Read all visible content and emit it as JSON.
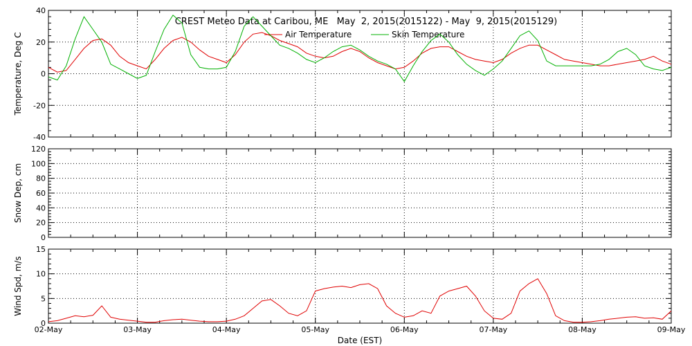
{
  "chart_data": {
    "type": "line",
    "title": "CREST Meteo Data at Caribou, ME   May  2, 2015(2015122) - May  9, 2015(2015129)",
    "xlabel": "Date (EST)",
    "x_tick_labels": [
      "02-May",
      "03-May",
      "04-May",
      "05-May",
      "06-May",
      "07-May",
      "08-May",
      "09-May"
    ],
    "xlim": [
      0,
      7
    ],
    "grid": true,
    "legend_position": "top-center",
    "panels": [
      {
        "ylabel": "Temperature, Deg C",
        "ylim": [
          -40,
          40
        ],
        "yticks": [
          -40,
          -20,
          0,
          20,
          40
        ],
        "series": [
          {
            "name": "Air Temperature",
            "color": "#e00000",
            "x": [
              0,
              0.1,
              0.2,
              0.3,
              0.4,
              0.5,
              0.6,
              0.7,
              0.8,
              0.9,
              1.0,
              1.1,
              1.2,
              1.3,
              1.4,
              1.5,
              1.6,
              1.7,
              1.8,
              1.9,
              2.0,
              2.1,
              2.2,
              2.3,
              2.4,
              2.5,
              2.6,
              2.7,
              2.8,
              2.9,
              3.0,
              3.1,
              3.2,
              3.3,
              3.4,
              3.5,
              3.6,
              3.7,
              3.8,
              3.9,
              4.0,
              4.1,
              4.2,
              4.3,
              4.4,
              4.5,
              4.6,
              4.7,
              4.8,
              4.9,
              5.0,
              5.1,
              5.2,
              5.3,
              5.4,
              5.5,
              5.6,
              5.7,
              5.8,
              5.9,
              6.0,
              6.1,
              6.2,
              6.3,
              6.4,
              6.5,
              6.6,
              6.7,
              6.8,
              6.9,
              7.0
            ],
            "y": [
              4,
              1,
              2,
              9,
              16,
              21,
              22,
              18,
              11,
              7,
              5,
              3,
              9,
              16,
              21,
              23,
              20,
              15,
              11,
              9,
              7,
              12,
              20,
              25,
              26,
              24,
              21,
              19,
              17,
              13,
              11,
              10,
              11,
              14,
              16,
              14,
              10,
              7,
              5,
              3,
              4,
              8,
              13,
              16,
              17,
              17,
              14,
              11,
              9,
              8,
              7,
              9,
              13,
              16,
              18,
              18,
              15,
              12,
              9,
              8,
              7,
              6,
              5,
              5,
              6,
              7,
              8,
              9,
              11,
              8,
              6
            ]
          },
          {
            "name": "Skin Temperature",
            "color": "#00b000",
            "x": [
              0,
              0.1,
              0.2,
              0.3,
              0.4,
              0.5,
              0.6,
              0.7,
              0.8,
              0.9,
              1.0,
              1.1,
              1.2,
              1.3,
              1.4,
              1.5,
              1.6,
              1.7,
              1.8,
              1.9,
              2.0,
              2.1,
              2.2,
              2.3,
              2.4,
              2.5,
              2.6,
              2.7,
              2.8,
              2.9,
              3.0,
              3.1,
              3.2,
              3.3,
              3.4,
              3.5,
              3.6,
              3.7,
              3.8,
              3.9,
              4.0,
              4.1,
              4.2,
              4.3,
              4.4,
              4.5,
              4.6,
              4.7,
              4.8,
              4.9,
              5.0,
              5.1,
              5.2,
              5.3,
              5.4,
              5.5,
              5.6,
              5.7,
              5.8,
              5.9,
              6.0,
              6.1,
              6.2,
              6.3,
              6.4,
              6.5,
              6.6,
              6.7,
              6.8,
              6.9,
              7.0
            ],
            "y": [
              -2,
              -4,
              5,
              22,
              36,
              28,
              20,
              6,
              3,
              0,
              -3,
              -1,
              14,
              28,
              37,
              32,
              12,
              4,
              3,
              3,
              4,
              14,
              30,
              36,
              30,
              24,
              18,
              16,
              13,
              9,
              7,
              10,
              14,
              17,
              18,
              15,
              11,
              8,
              6,
              3,
              -5,
              5,
              14,
              21,
              25,
              20,
              12,
              6,
              2,
              -1,
              3,
              8,
              16,
              24,
              27,
              21,
              8,
              5,
              5,
              5,
              5,
              5,
              6,
              9,
              14,
              16,
              12,
              5,
              3,
              2,
              4
            ]
          }
        ]
      },
      {
        "ylabel": "Snow Dep, cm",
        "ylim": [
          0,
          120
        ],
        "yticks": [
          0,
          20,
          40,
          60,
          80,
          100,
          120
        ],
        "series": []
      },
      {
        "ylabel": "Wind Spd, m/s",
        "ylim": [
          0,
          15
        ],
        "yticks": [
          0,
          5,
          10,
          15
        ],
        "series": [
          {
            "name": "Wind Speed",
            "color": "#e00000",
            "x": [
              0,
              0.1,
              0.2,
              0.3,
              0.4,
              0.5,
              0.6,
              0.7,
              0.8,
              0.9,
              1.0,
              1.1,
              1.2,
              1.3,
              1.4,
              1.5,
              1.6,
              1.7,
              1.8,
              1.9,
              2.0,
              2.1,
              2.2,
              2.3,
              2.4,
              2.5,
              2.6,
              2.7,
              2.8,
              2.9,
              3.0,
              3.1,
              3.2,
              3.3,
              3.4,
              3.5,
              3.6,
              3.7,
              3.8,
              3.9,
              4.0,
              4.1,
              4.2,
              4.3,
              4.4,
              4.5,
              4.6,
              4.7,
              4.8,
              4.9,
              5.0,
              5.1,
              5.2,
              5.3,
              5.4,
              5.5,
              5.6,
              5.7,
              5.8,
              5.9,
              6.0,
              6.1,
              6.2,
              6.3,
              6.4,
              6.5,
              6.6,
              6.7,
              6.8,
              6.9,
              7.0
            ],
            "y": [
              0.3,
              0.5,
              1.0,
              1.5,
              1.3,
              1.6,
              3.5,
              1.2,
              0.8,
              0.6,
              0.4,
              0.2,
              0.2,
              0.5,
              0.7,
              0.8,
              0.6,
              0.4,
              0.3,
              0.3,
              0.4,
              0.8,
              1.5,
              3.0,
              4.5,
              4.8,
              3.5,
              2.0,
              1.5,
              2.5,
              6.5,
              7.0,
              7.3,
              7.5,
              7.2,
              7.8,
              8.0,
              7.0,
              3.5,
              2.0,
              1.2,
              1.5,
              2.5,
              2.0,
              5.5,
              6.5,
              7.0,
              7.5,
              5.5,
              2.5,
              1.0,
              0.8,
              2.0,
              6.5,
              8.0,
              9.0,
              6.0,
              1.5,
              0.5,
              0.2,
              0.2,
              0.3,
              0.5,
              0.8,
              1.0,
              1.2,
              1.3,
              1.0,
              1.1,
              0.8,
              2.5
            ]
          }
        ]
      }
    ]
  }
}
